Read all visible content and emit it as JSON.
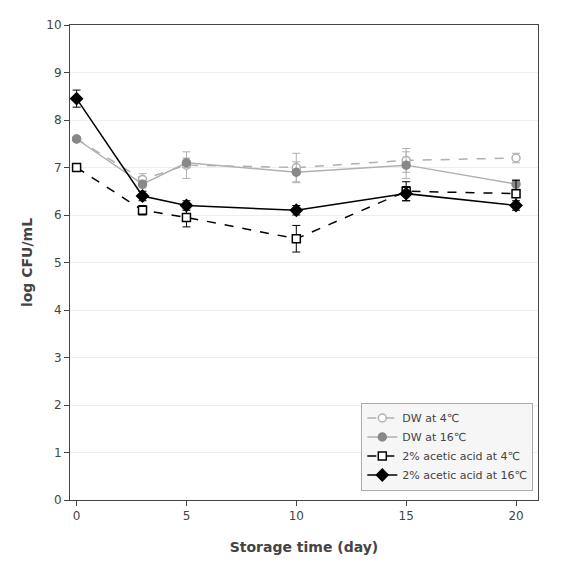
{
  "chart_data": {
    "type": "line",
    "x": [
      0,
      3,
      5,
      10,
      15,
      20
    ],
    "series": [
      {
        "name": "DW at 4℃",
        "color": "#b0b0b0",
        "line_style": "dash",
        "marker": "circle-open",
        "values": [
          7.6,
          6.75,
          7.05,
          7.0,
          7.15,
          7.2
        ],
        "errors": [
          0.05,
          0.12,
          0.28,
          0.3,
          0.25,
          0.1
        ]
      },
      {
        "name": "DW at 16℃",
        "color": "#b0b0b0",
        "line_style": "solid",
        "marker": "circle",
        "colors": [
          "#888888",
          "#888888",
          "#888888",
          "#888888",
          "#888888",
          "#888888"
        ],
        "values": [
          7.6,
          6.65,
          7.1,
          6.9,
          7.05,
          6.65
        ],
        "errors": [
          0.0,
          0.08,
          0.1,
          0.22,
          0.28,
          0.1
        ]
      },
      {
        "name": "2% acetic acid at 4℃",
        "color": "#000000",
        "line_style": "dash",
        "marker": "square-open",
        "values": [
          7.0,
          6.1,
          5.95,
          5.5,
          6.5,
          6.45
        ],
        "errors": [
          0.0,
          0.1,
          0.2,
          0.28,
          0.2,
          0.28
        ]
      },
      {
        "name": "2% acetic acid at 16℃",
        "color": "#000000",
        "line_style": "solid",
        "marker": "diamond",
        "values": [
          8.45,
          6.4,
          6.2,
          6.1,
          6.45,
          6.2
        ],
        "errors": [
          0.18,
          0.1,
          0.1,
          0.1,
          0.15,
          0.1
        ]
      }
    ],
    "xlabel": "Storage time (day)",
    "ylabel": "log CFU/mL",
    "xlim": [
      -0.3,
      21
    ],
    "ylim": [
      0,
      10
    ],
    "xticks": [
      0,
      5,
      10,
      15,
      20
    ],
    "yticks": [
      0,
      1,
      2,
      3,
      4,
      5,
      6,
      7,
      8,
      9,
      10
    ],
    "grid": "y",
    "legend": "lower right"
  }
}
